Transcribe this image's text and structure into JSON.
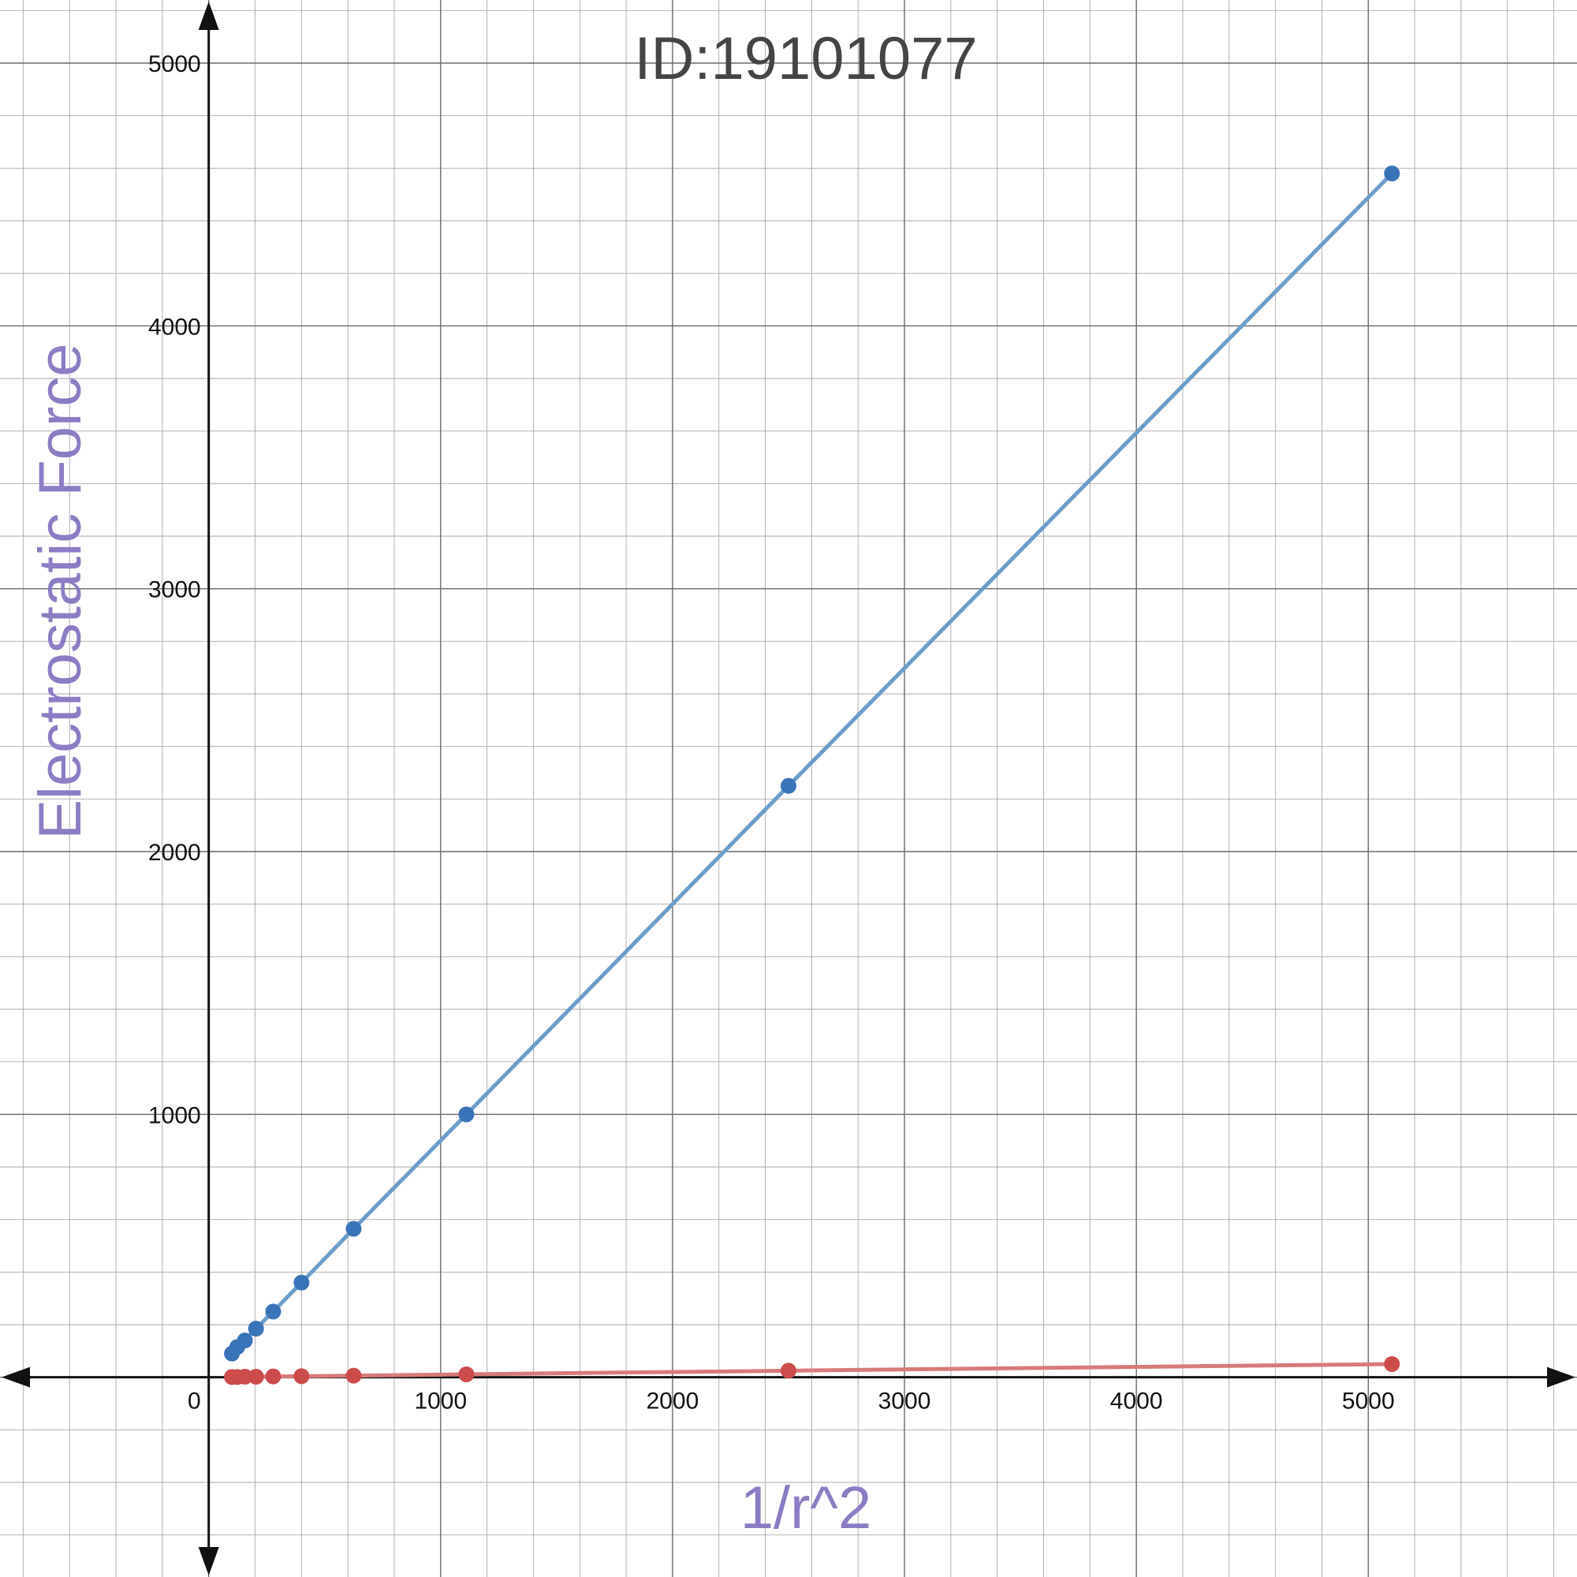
{
  "chart_data": {
    "type": "scatter",
    "title": "ID:19101077",
    "xlabel": "1/r^2",
    "ylabel": "Electrostatic Force",
    "xlim": [
      -900,
      5900
    ],
    "ylim": [
      -760,
      5240
    ],
    "x_ticks": [
      1000,
      2000,
      3000,
      4000,
      5000
    ],
    "y_ticks": [
      1000,
      2000,
      3000,
      4000,
      5000
    ],
    "origin_label": "0",
    "grid": true,
    "minor_grid_step": 200,
    "major_grid_step": 1000,
    "series": [
      {
        "name": "blue series",
        "color": "#3a74b8",
        "line_color": "#6c9dc9",
        "x": [
          100,
          123,
          156,
          204,
          278,
          400,
          625,
          1111,
          2500,
          5102
        ],
        "y": [
          90,
          115,
          140,
          185,
          250,
          360,
          565,
          1000,
          2250,
          4580
        ]
      },
      {
        "name": "red series",
        "color": "#cc4b4b",
        "line_color": "#d87a7a",
        "x": [
          100,
          123,
          156,
          204,
          278,
          400,
          625,
          1111,
          2500,
          5102
        ],
        "y": [
          1,
          1,
          2,
          2,
          3,
          4,
          6,
          11,
          25,
          50
        ]
      }
    ],
    "axis_title_color": "#8c7cc4"
  }
}
